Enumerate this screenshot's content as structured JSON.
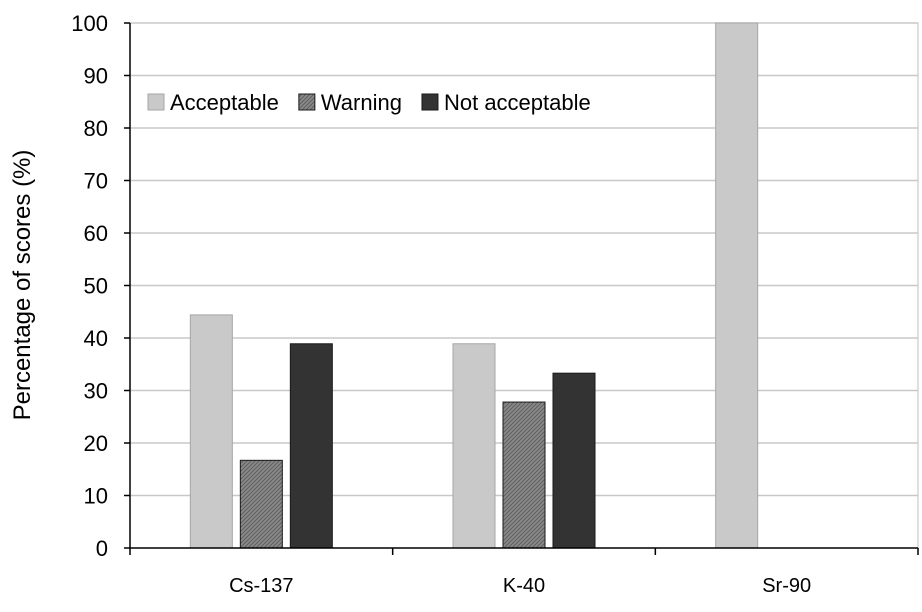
{
  "chart_data": {
    "type": "bar",
    "categories": [
      "Cs-137",
      "K-40",
      "Sr-90"
    ],
    "series": [
      {
        "name": "Acceptable",
        "values": [
          44.4,
          38.9,
          100
        ],
        "color": "#c9c9c9",
        "pattern": "solid"
      },
      {
        "name": "Warning",
        "values": [
          16.7,
          27.8,
          0
        ],
        "color": "#7f7f7f",
        "pattern": "hatched"
      },
      {
        "name": "Not acceptable",
        "values": [
          38.9,
          33.3,
          0
        ],
        "color": "#333333",
        "pattern": "solid"
      }
    ],
    "ylabel": "Percentage of scores (%)",
    "xlabel": "",
    "ylim": [
      0,
      100
    ],
    "yticks": [
      0,
      10,
      20,
      30,
      40,
      50,
      60,
      70,
      80,
      90,
      100
    ],
    "grid": true,
    "legend_position": "top-left"
  }
}
